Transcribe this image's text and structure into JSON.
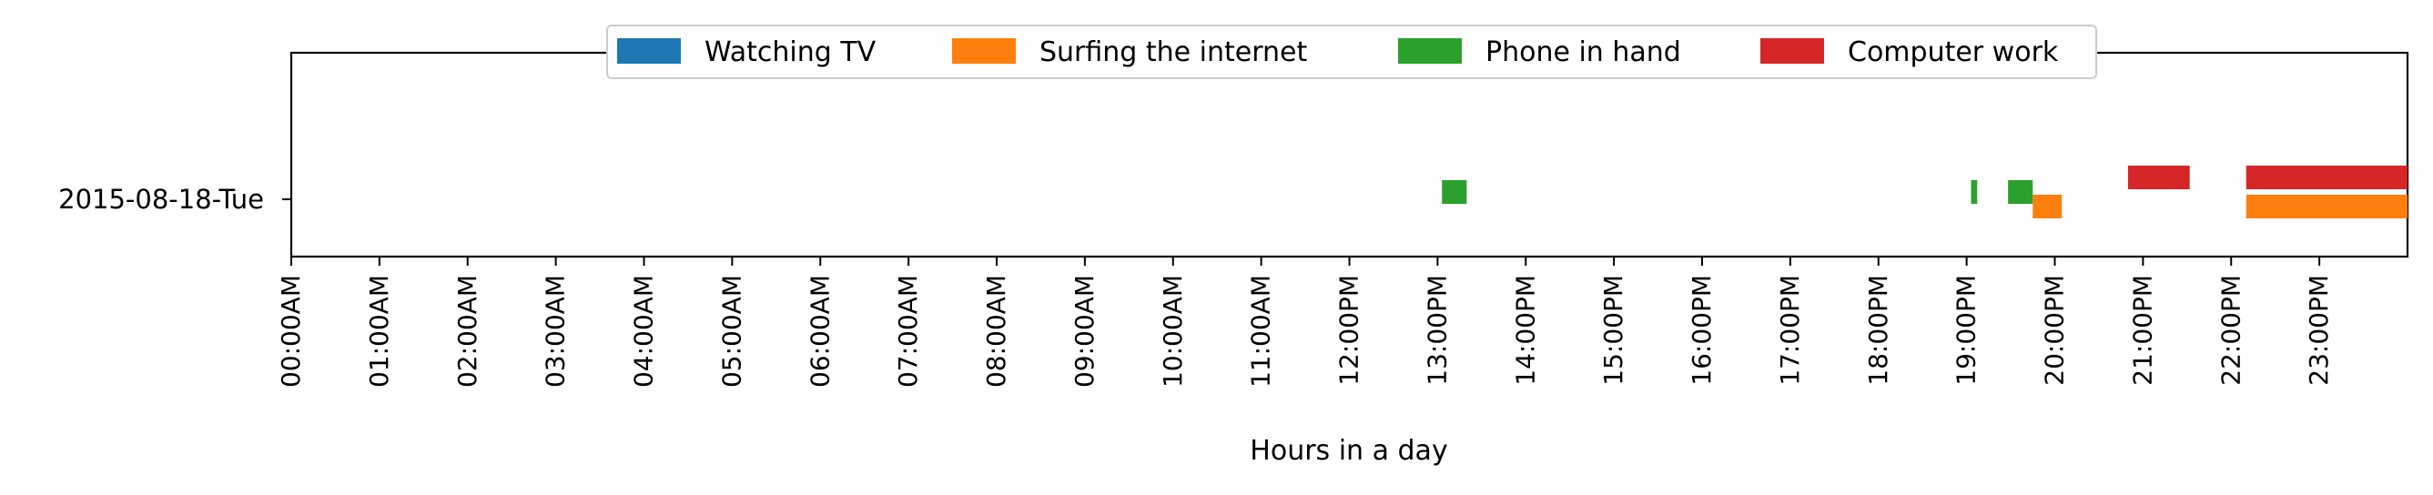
{
  "chart_data": {
    "type": "bar",
    "orientation": "horizontal-timeline",
    "title": "",
    "xlabel": "Hours in a day",
    "ylabel": "",
    "xlim": [
      0,
      24
    ],
    "x_ticks": [
      {
        "value": 0,
        "label": "00:00AM"
      },
      {
        "value": 1,
        "label": "01:00AM"
      },
      {
        "value": 2,
        "label": "02:00AM"
      },
      {
        "value": 3,
        "label": "03:00AM"
      },
      {
        "value": 4,
        "label": "04:00AM"
      },
      {
        "value": 5,
        "label": "05:00AM"
      },
      {
        "value": 6,
        "label": "06:00AM"
      },
      {
        "value": 7,
        "label": "07:00AM"
      },
      {
        "value": 8,
        "label": "08:00AM"
      },
      {
        "value": 9,
        "label": "09:00AM"
      },
      {
        "value": 10,
        "label": "10:00AM"
      },
      {
        "value": 11,
        "label": "11:00AM"
      },
      {
        "value": 12,
        "label": "12:00PM"
      },
      {
        "value": 13,
        "label": "13:00PM"
      },
      {
        "value": 14,
        "label": "14:00PM"
      },
      {
        "value": 15,
        "label": "15:00PM"
      },
      {
        "value": 16,
        "label": "16:00PM"
      },
      {
        "value": 17,
        "label": "17:00PM"
      },
      {
        "value": 18,
        "label": "18:00PM"
      },
      {
        "value": 19,
        "label": "19:00PM"
      },
      {
        "value": 20,
        "label": "20:00PM"
      },
      {
        "value": 21,
        "label": "21:00PM"
      },
      {
        "value": 22,
        "label": "22:00PM"
      },
      {
        "value": 23,
        "label": "23:00PM"
      }
    ],
    "categories": [
      "2015-08-18-Tue"
    ],
    "legend_position": "top-center",
    "grid": false,
    "series": [
      {
        "name": "Watching TV",
        "color": "#1f77b4",
        "intervals": []
      },
      {
        "name": "Surfing the internet",
        "color": "#ff7f0e",
        "intervals": [
          {
            "category": "2015-08-18-Tue",
            "start": 19.75,
            "end": 20.08
          },
          {
            "category": "2015-08-18-Tue",
            "start": 22.17,
            "end": 24.0
          }
        ]
      },
      {
        "name": "Phone in hand",
        "color": "#2ca02c",
        "intervals": [
          {
            "category": "2015-08-18-Tue",
            "start": 13.05,
            "end": 13.33
          },
          {
            "category": "2015-08-18-Tue",
            "start": 19.05,
            "end": 19.12
          },
          {
            "category": "2015-08-18-Tue",
            "start": 19.47,
            "end": 19.75
          }
        ]
      },
      {
        "name": "Computer work",
        "color": "#d62728",
        "intervals": [
          {
            "category": "2015-08-18-Tue",
            "start": 20.83,
            "end": 21.53
          },
          {
            "category": "2015-08-18-Tue",
            "start": 22.17,
            "end": 24.0
          }
        ]
      }
    ]
  }
}
